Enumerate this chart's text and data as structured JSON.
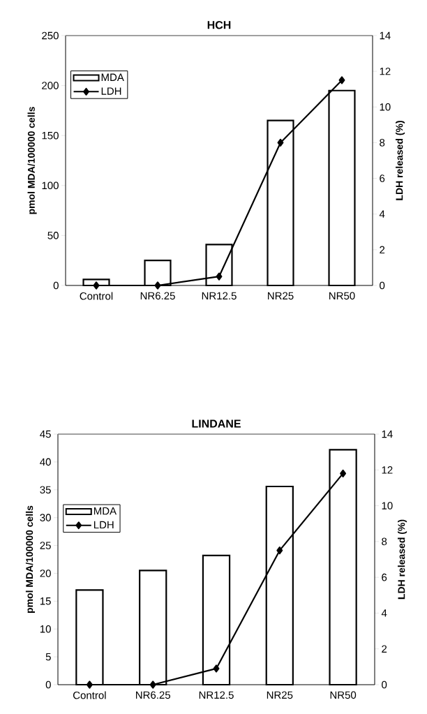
{
  "chart_data": [
    {
      "type": "bar",
      "title": "HCH",
      "categories": [
        "Control",
        "NR6.25",
        "NR12.5",
        "NR25",
        "NR50"
      ],
      "ylabel": "pmol MDA/100000 cells",
      "y2label": "LDH released (%)",
      "ylim": [
        0,
        250
      ],
      "yticks": [
        0,
        50,
        100,
        150,
        200,
        250
      ],
      "y2lim": [
        0,
        14
      ],
      "y2ticks": [
        0,
        2,
        4,
        6,
        8,
        10,
        12,
        14
      ],
      "legend": "top left",
      "series": [
        {
          "name": "MDA",
          "color": "#ffffff",
          "values": [
            6,
            25,
            41,
            165,
            195
          ]
        },
        {
          "name": "LDH",
          "type": "line",
          "axis": "y2",
          "color": "#000000",
          "marker": "diamond",
          "values": [
            0,
            0,
            0.5,
            8,
            11.5
          ]
        }
      ]
    },
    {
      "type": "bar",
      "title": "LINDANE",
      "categories": [
        "Control",
        "NR6.25",
        "NR12.5",
        "NR25",
        "NR50"
      ],
      "ylabel": "pmol MDA/100000 cells",
      "y2label": "LDH released (%)",
      "ylim": [
        0,
        45
      ],
      "yticks": [
        0,
        5,
        10,
        15,
        20,
        25,
        30,
        35,
        40,
        45
      ],
      "y2lim": [
        0,
        14
      ],
      "y2ticks": [
        0,
        2,
        4,
        6,
        8,
        10,
        12,
        14
      ],
      "legend": "top left",
      "series": [
        {
          "name": "MDA",
          "color": "#ffffff",
          "values": [
            17,
            20.5,
            23.2,
            35.6,
            42.2
          ]
        },
        {
          "name": "LDH",
          "type": "line",
          "axis": "y2",
          "color": "#000000",
          "marker": "diamond",
          "values": [
            0,
            0,
            0.9,
            7.5,
            11.8
          ]
        }
      ]
    }
  ]
}
